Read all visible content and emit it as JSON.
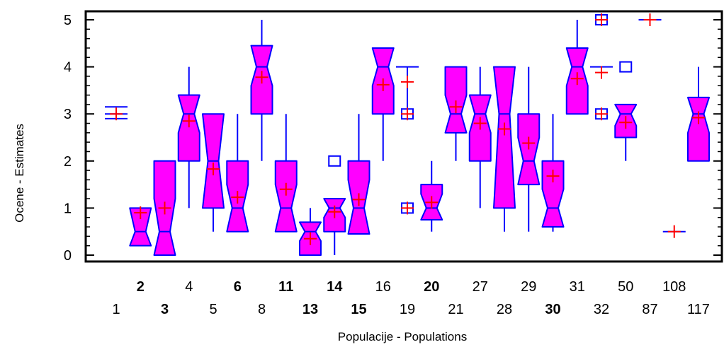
{
  "chart_data": {
    "type": "boxplot",
    "xlabel": "Populacije - Populations",
    "ylabel": "Ocene - Estimates",
    "ylim": [
      -0.1,
      5.2
    ],
    "yticks": [
      0,
      1,
      2,
      3,
      4,
      5
    ],
    "colors": {
      "box_fill": "#ff00ff",
      "box_line": "#0000ff",
      "mean_marker": "#ff0000",
      "axis": "#000000"
    },
    "categories": [
      {
        "label": "1",
        "bold": false,
        "row": 2,
        "box": null,
        "whiskers": null,
        "mean": 3.0,
        "outliers": [],
        "line": [
          2.9,
          3.0,
          3.15
        ]
      },
      {
        "label": "2",
        "bold": true,
        "row": 1,
        "box": {
          "q1": 0.5,
          "median": 0.5,
          "q3": 1.0,
          "notch_low": 0.2,
          "notch_high": 1.0
        },
        "whiskers": [
          0.5,
          1.0
        ],
        "mean": 0.9,
        "outliers": []
      },
      {
        "label": "3",
        "bold": true,
        "row": 2,
        "box": {
          "q1": 0.5,
          "median": 0.5,
          "q3": 2.0,
          "notch_low": 0.0,
          "notch_high": 1.2
        },
        "whiskers": [
          0.5,
          2.0
        ],
        "mean": 1.0,
        "outliers": []
      },
      {
        "label": "4",
        "bold": false,
        "row": 1,
        "box": {
          "q1": 2.0,
          "median": 3.0,
          "q3": 3.0,
          "notch_low": 2.6,
          "notch_high": 3.4
        },
        "whiskers": [
          1.0,
          4.0
        ],
        "mean": 2.85,
        "outliers": []
      },
      {
        "label": "5",
        "bold": false,
        "row": 2,
        "box": {
          "q1": 1.0,
          "median": 2.0,
          "q3": 3.0,
          "notch_low": 1.0,
          "notch_high": 3.0
        },
        "whiskers": [
          0.5,
          3.0
        ],
        "mean": 1.83,
        "outliers": []
      },
      {
        "label": "6",
        "bold": true,
        "row": 1,
        "box": {
          "q1": 0.5,
          "median": 1.0,
          "q3": 2.0,
          "notch_low": 0.5,
          "notch_high": 1.5
        },
        "whiskers": [
          0.5,
          3.0
        ],
        "mean": 1.23,
        "outliers": []
      },
      {
        "label": "8",
        "bold": false,
        "row": 2,
        "box": {
          "q1": 3.0,
          "median": 4.0,
          "q3": 4.0,
          "notch_low": 3.6,
          "notch_high": 4.45
        },
        "whiskers": [
          2.0,
          5.0
        ],
        "mean": 3.78,
        "outliers": []
      },
      {
        "label": "11",
        "bold": true,
        "row": 1,
        "box": {
          "q1": 0.5,
          "median": 1.0,
          "q3": 2.0,
          "notch_low": 0.5,
          "notch_high": 1.5
        },
        "whiskers": [
          0.5,
          3.0
        ],
        "mean": 1.4,
        "outliers": []
      },
      {
        "label": "13",
        "bold": true,
        "row": 2,
        "box": {
          "q1": 0.0,
          "median": 0.5,
          "q3": 0.5,
          "notch_low": 0.3,
          "notch_high": 0.7
        },
        "whiskers": [
          0.0,
          1.0
        ],
        "mean": 0.35,
        "outliers": []
      },
      {
        "label": "14",
        "bold": true,
        "row": 1,
        "box": {
          "q1": 0.5,
          "median": 1.0,
          "q3": 1.0,
          "notch_low": 0.8,
          "notch_high": 1.2
        },
        "whiskers": [
          0.0,
          1.0
        ],
        "mean": 0.92,
        "outliers": [
          2.0
        ]
      },
      {
        "label": "15",
        "bold": true,
        "row": 2,
        "box": {
          "q1": 0.5,
          "median": 1.0,
          "q3": 2.0,
          "notch_low": 0.45,
          "notch_high": 1.6
        },
        "whiskers": [
          0.5,
          3.0
        ],
        "mean": 1.18,
        "outliers": []
      },
      {
        "label": "16",
        "bold": false,
        "row": 1,
        "box": {
          "q1": 3.0,
          "median": 4.0,
          "q3": 4.0,
          "notch_low": 3.6,
          "notch_high": 4.4
        },
        "whiskers": [
          2.0,
          4.0
        ],
        "mean": 3.62,
        "outliers": []
      },
      {
        "label": "19",
        "bold": false,
        "row": 2,
        "box": null,
        "whiskers": [
          3.0,
          4.0
        ],
        "mean": 3.68,
        "outliers": [
          3.0,
          1.0
        ],
        "extra_means": [
          3.0,
          1.0
        ],
        "line": [
          4.0
        ]
      },
      {
        "label": "20",
        "bold": true,
        "row": 1,
        "box": {
          "q1": 0.75,
          "median": 1.0,
          "q3": 1.5,
          "notch_low": 0.75,
          "notch_high": 1.3
        },
        "whiskers": [
          0.5,
          2.0
        ],
        "mean": 1.12,
        "outliers": []
      },
      {
        "label": "21",
        "bold": false,
        "row": 2,
        "box": {
          "q1": 3.0,
          "median": 3.0,
          "q3": 4.0,
          "notch_low": 2.6,
          "notch_high": 3.4
        },
        "whiskers": [
          2.0,
          4.0
        ],
        "mean": 3.15,
        "outliers": []
      },
      {
        "label": "27",
        "bold": false,
        "row": 1,
        "box": {
          "q1": 2.0,
          "median": 3.0,
          "q3": 3.0,
          "notch_low": 2.6,
          "notch_high": 3.4
        },
        "whiskers": [
          1.0,
          4.0
        ],
        "mean": 2.8,
        "outliers": []
      },
      {
        "label": "28",
        "bold": false,
        "row": 2,
        "box": {
          "q1": 1.0,
          "median": 3.0,
          "q3": 4.0,
          "notch_low": 1.0,
          "notch_high": 4.0
        },
        "whiskers": [
          0.5,
          4.0
        ],
        "mean": 2.68,
        "outliers": []
      },
      {
        "label": "29",
        "bold": false,
        "row": 1,
        "box": {
          "q1": 2.0,
          "median": 2.0,
          "q3": 3.0,
          "notch_low": 1.5,
          "notch_high": 2.5
        },
        "whiskers": [
          0.5,
          4.0
        ],
        "mean": 2.38,
        "outliers": []
      },
      {
        "label": "30",
        "bold": true,
        "row": 2,
        "box": {
          "q1": 1.0,
          "median": 1.0,
          "q3": 2.0,
          "notch_low": 0.6,
          "notch_high": 1.4
        },
        "whiskers": [
          0.5,
          3.0
        ],
        "mean": 1.68,
        "outliers": []
      },
      {
        "label": "31",
        "bold": false,
        "row": 1,
        "box": {
          "q1": 3.0,
          "median": 4.0,
          "q3": 4.0,
          "notch_low": 3.6,
          "notch_high": 4.4
        },
        "whiskers": [
          3.0,
          5.0
        ],
        "mean": 3.75,
        "outliers": []
      },
      {
        "label": "32",
        "bold": false,
        "row": 2,
        "box": null,
        "whiskers": null,
        "mean": 3.88,
        "outliers": [
          5.0,
          3.0
        ],
        "extra_means": [
          5.0,
          3.0
        ],
        "line": [
          4.0
        ]
      },
      {
        "label": "50",
        "bold": false,
        "row": 1,
        "box": {
          "q1": 2.5,
          "median": 3.0,
          "q3": 3.0,
          "notch_low": 2.75,
          "notch_high": 3.2
        },
        "whiskers": [
          2.0,
          3.0
        ],
        "mean": 2.82,
        "outliers": [
          4.0
        ]
      },
      {
        "label": "87",
        "bold": false,
        "row": 2,
        "box": null,
        "whiskers": null,
        "mean": 5.0,
        "outliers": [],
        "line": [
          5.0
        ]
      },
      {
        "label": "108",
        "bold": false,
        "row": 1,
        "box": null,
        "whiskers": null,
        "mean": 0.5,
        "outliers": [],
        "line": [
          0.5
        ]
      },
      {
        "label": "117",
        "bold": false,
        "row": 2,
        "box": {
          "q1": 2.0,
          "median": 3.0,
          "q3": 3.0,
          "notch_low": 2.6,
          "notch_high": 3.35
        },
        "whiskers": [
          2.0,
          4.0
        ],
        "mean": 2.92,
        "outliers": []
      }
    ]
  }
}
